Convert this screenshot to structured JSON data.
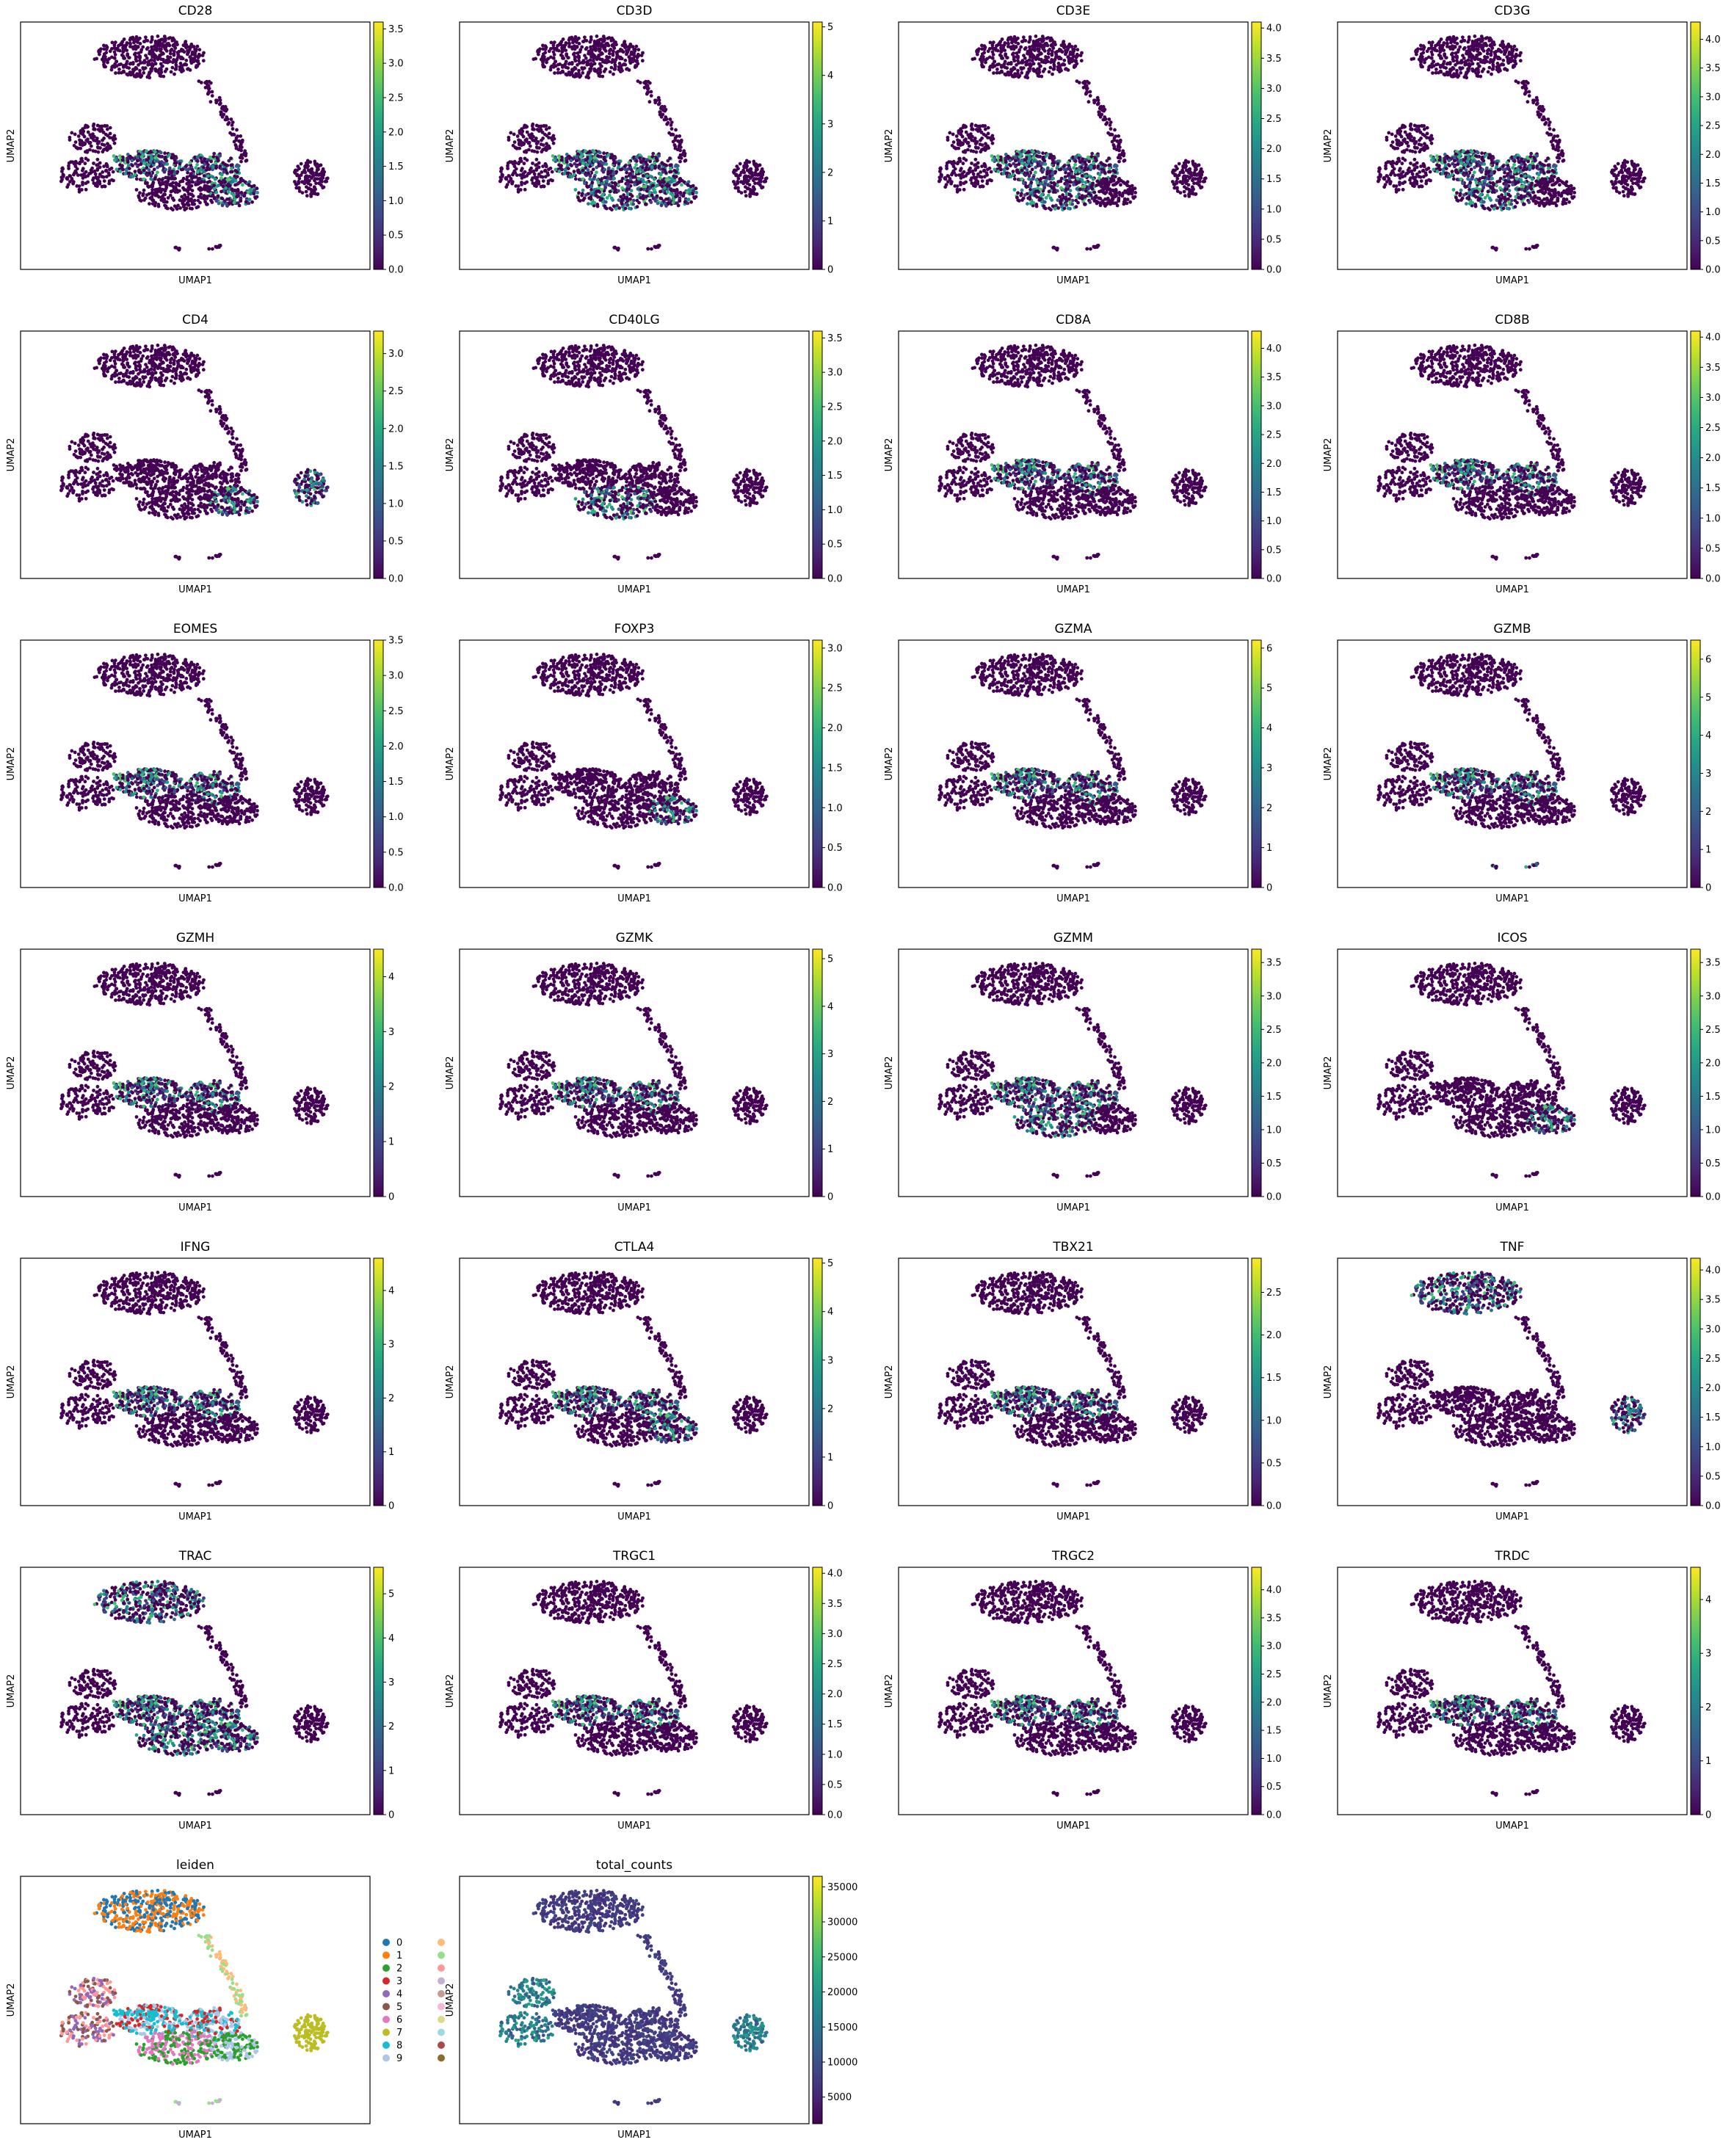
{
  "figure": {
    "xlabel": "UMAP1",
    "ylabel": "UMAP2",
    "colormap": "viridis",
    "point_color_low": "#440154"
  },
  "chart_data": [
    {
      "type": "scatter",
      "title": "CD28",
      "xlabel": "UMAP1",
      "ylabel": "UMAP2",
      "colorbar_ticks": [
        "0.0",
        "0.5",
        "1.0",
        "1.5",
        "2.0",
        "2.5",
        "3.0",
        "3.5"
      ],
      "colorbar_max": 3.6,
      "hotspots": [
        "central",
        "lower-right"
      ]
    },
    {
      "type": "scatter",
      "title": "CD3D",
      "xlabel": "UMAP1",
      "ylabel": "UMAP2",
      "colorbar_ticks": [
        "0",
        "1",
        "2",
        "3",
        "4",
        "5"
      ],
      "colorbar_max": 5.1,
      "hotspots": [
        "central",
        "lower-center",
        "lower-right"
      ]
    },
    {
      "type": "scatter",
      "title": "CD3E",
      "xlabel": "UMAP1",
      "ylabel": "UMAP2",
      "colorbar_ticks": [
        "0.0",
        "0.5",
        "1.0",
        "1.5",
        "2.0",
        "2.5",
        "3.0",
        "3.5",
        "4.0"
      ],
      "colorbar_max": 4.1,
      "hotspots": [
        "central",
        "lower-center",
        "left-arm"
      ]
    },
    {
      "type": "scatter",
      "title": "CD3G",
      "xlabel": "UMAP1",
      "ylabel": "UMAP2",
      "colorbar_ticks": [
        "0.0",
        "0.5",
        "1.0",
        "1.5",
        "2.0",
        "2.5",
        "3.0",
        "3.5",
        "4.0"
      ],
      "colorbar_max": 4.3,
      "hotspots": [
        "central",
        "lower-center"
      ]
    },
    {
      "type": "scatter",
      "title": "CD4",
      "xlabel": "UMAP1",
      "ylabel": "UMAP2",
      "colorbar_ticks": [
        "0.0",
        "0.5",
        "1.0",
        "1.5",
        "2.0",
        "2.5",
        "3.0"
      ],
      "colorbar_max": 3.3,
      "hotspots": [
        "lower-right",
        "right-cluster"
      ]
    },
    {
      "type": "scatter",
      "title": "CD40LG",
      "xlabel": "UMAP1",
      "ylabel": "UMAP2",
      "colorbar_ticks": [
        "0.0",
        "0.5",
        "1.0",
        "1.5",
        "2.0",
        "2.5",
        "3.0",
        "3.5"
      ],
      "colorbar_max": 3.6,
      "hotspots": [
        "lower-center"
      ]
    },
    {
      "type": "scatter",
      "title": "CD8A",
      "xlabel": "UMAP1",
      "ylabel": "UMAP2",
      "colorbar_ticks": [
        "0.0",
        "0.5",
        "1.0",
        "1.5",
        "2.0",
        "2.5",
        "3.0",
        "3.5",
        "4.0"
      ],
      "colorbar_max": 4.3,
      "hotspots": [
        "central"
      ]
    },
    {
      "type": "scatter",
      "title": "CD8B",
      "xlabel": "UMAP1",
      "ylabel": "UMAP2",
      "colorbar_ticks": [
        "0.0",
        "0.5",
        "1.0",
        "1.5",
        "2.0",
        "2.5",
        "3.0",
        "3.5",
        "4.0"
      ],
      "colorbar_max": 4.1,
      "hotspots": [
        "central"
      ]
    },
    {
      "type": "scatter",
      "title": "EOMES",
      "xlabel": "UMAP1",
      "ylabel": "UMAP2",
      "colorbar_ticks": [
        "0.0",
        "0.5",
        "1.0",
        "1.5",
        "2.0",
        "2.5",
        "3.0",
        "3.5"
      ],
      "colorbar_max": 3.5,
      "hotspots": [
        "central",
        "left-arm"
      ]
    },
    {
      "type": "scatter",
      "title": "FOXP3",
      "xlabel": "UMAP1",
      "ylabel": "UMAP2",
      "colorbar_ticks": [
        "0.0",
        "0.5",
        "1.0",
        "1.5",
        "2.0",
        "2.5",
        "3.0"
      ],
      "colorbar_max": 3.1,
      "hotspots": [
        "lower-right"
      ]
    },
    {
      "type": "scatter",
      "title": "GZMA",
      "xlabel": "UMAP1",
      "ylabel": "UMAP2",
      "colorbar_ticks": [
        "0",
        "1",
        "2",
        "3",
        "4",
        "5",
        "6"
      ],
      "colorbar_max": 6.2,
      "hotspots": [
        "central",
        "left-arm"
      ]
    },
    {
      "type": "scatter",
      "title": "GZMB",
      "xlabel": "UMAP1",
      "ylabel": "UMAP2",
      "colorbar_ticks": [
        "0",
        "1",
        "2",
        "3",
        "4",
        "5",
        "6"
      ],
      "colorbar_max": 6.5,
      "hotspots": [
        "central",
        "left-arm",
        "bottom-small"
      ]
    },
    {
      "type": "scatter",
      "title": "GZMH",
      "xlabel": "UMAP1",
      "ylabel": "UMAP2",
      "colorbar_ticks": [
        "0",
        "1",
        "2",
        "3",
        "4"
      ],
      "colorbar_max": 4.5,
      "hotspots": [
        "central",
        "left-arm"
      ]
    },
    {
      "type": "scatter",
      "title": "GZMK",
      "xlabel": "UMAP1",
      "ylabel": "UMAP2",
      "colorbar_ticks": [
        "0",
        "1",
        "2",
        "3",
        "4",
        "5"
      ],
      "colorbar_max": 5.2,
      "hotspots": [
        "central"
      ]
    },
    {
      "type": "scatter",
      "title": "GZMM",
      "xlabel": "UMAP1",
      "ylabel": "UMAP2",
      "colorbar_ticks": [
        "0.0",
        "0.5",
        "1.0",
        "1.5",
        "2.0",
        "2.5",
        "3.0",
        "3.5"
      ],
      "colorbar_max": 3.7,
      "hotspots": [
        "central",
        "lower-center"
      ]
    },
    {
      "type": "scatter",
      "title": "ICOS",
      "xlabel": "UMAP1",
      "ylabel": "UMAP2",
      "colorbar_ticks": [
        "0.0",
        "0.5",
        "1.0",
        "1.5",
        "2.0",
        "2.5",
        "3.0",
        "3.5"
      ],
      "colorbar_max": 3.7,
      "hotspots": [
        "lower-right"
      ]
    },
    {
      "type": "scatter",
      "title": "IFNG",
      "xlabel": "UMAP1",
      "ylabel": "UMAP2",
      "colorbar_ticks": [
        "0",
        "1",
        "2",
        "3",
        "4"
      ],
      "colorbar_max": 4.6,
      "hotspots": [
        "central",
        "left-arm"
      ]
    },
    {
      "type": "scatter",
      "title": "CTLA4",
      "xlabel": "UMAP1",
      "ylabel": "UMAP2",
      "colorbar_ticks": [
        "0",
        "1",
        "2",
        "3",
        "4",
        "5"
      ],
      "colorbar_max": 5.1,
      "hotspots": [
        "central",
        "lower-right"
      ]
    },
    {
      "type": "scatter",
      "title": "TBX21",
      "xlabel": "UMAP1",
      "ylabel": "UMAP2",
      "colorbar_ticks": [
        "0.0",
        "0.5",
        "1.0",
        "1.5",
        "2.0",
        "2.5"
      ],
      "colorbar_max": 2.9,
      "hotspots": [
        "central"
      ]
    },
    {
      "type": "scatter",
      "title": "TNF",
      "xlabel": "UMAP1",
      "ylabel": "UMAP2",
      "colorbar_ticks": [
        "0.0",
        "0.5",
        "1.0",
        "1.5",
        "2.0",
        "2.5",
        "3.0",
        "3.5",
        "4.0"
      ],
      "colorbar_max": 4.2,
      "hotspots": [
        "top",
        "right-cluster"
      ]
    },
    {
      "type": "scatter",
      "title": "TRAC",
      "xlabel": "UMAP1",
      "ylabel": "UMAP2",
      "colorbar_ticks": [
        "0",
        "1",
        "2",
        "3",
        "4",
        "5"
      ],
      "colorbar_max": 5.6,
      "hotspots": [
        "central",
        "lower-center",
        "lower-right",
        "top"
      ]
    },
    {
      "type": "scatter",
      "title": "TRGC1",
      "xlabel": "UMAP1",
      "ylabel": "UMAP2",
      "colorbar_ticks": [
        "0.0",
        "0.5",
        "1.0",
        "1.5",
        "2.0",
        "2.5",
        "3.0",
        "3.5",
        "4.0"
      ],
      "colorbar_max": 4.1,
      "hotspots": [
        "central"
      ]
    },
    {
      "type": "scatter",
      "title": "TRGC2",
      "xlabel": "UMAP1",
      "ylabel": "UMAP2",
      "colorbar_ticks": [
        "0.0",
        "0.5",
        "1.0",
        "1.5",
        "2.0",
        "2.5",
        "3.0",
        "3.5",
        "4.0"
      ],
      "colorbar_max": 4.4,
      "hotspots": [
        "central"
      ]
    },
    {
      "type": "scatter",
      "title": "TRDC",
      "xlabel": "UMAP1",
      "ylabel": "UMAP2",
      "colorbar_ticks": [
        "0",
        "1",
        "2",
        "3",
        "4"
      ],
      "colorbar_max": 4.6,
      "hotspots": [
        "central"
      ]
    },
    {
      "type": "scatter",
      "title": "leiden",
      "xlabel": "UMAP1",
      "ylabel": "UMAP2",
      "categorical": true,
      "legend_labels": [
        "0",
        "1",
        "2",
        "3",
        "4",
        "5",
        "6",
        "7",
        "8",
        "9"
      ],
      "legend_colors": [
        "#1f77b4",
        "#ff7f0e",
        "#2ca02c",
        "#d62728",
        "#9467bd",
        "#8c564b",
        "#e377c2",
        "#bcbd22",
        "#17becf",
        "#aec7e8",
        "#ffbb78",
        "#98df8a",
        "#ff9896",
        "#c5b0d5",
        "#c49c94",
        "#f7b6d2",
        "#dbdb8d",
        "#9edae5",
        "#ad494a",
        "#8c6d31"
      ]
    },
    {
      "type": "scatter",
      "title": "total_counts",
      "xlabel": "UMAP1",
      "ylabel": "UMAP2",
      "colorbar_ticks": [
        "5000",
        "10000",
        "15000",
        "20000",
        "25000",
        "30000",
        "35000"
      ],
      "colorbar_tick_values": [
        5000,
        10000,
        15000,
        20000,
        25000,
        30000,
        35000
      ],
      "colorbar_min": 1200,
      "colorbar_max": 36500,
      "hotspots": [
        "left-cluster",
        "right-cluster"
      ]
    }
  ]
}
